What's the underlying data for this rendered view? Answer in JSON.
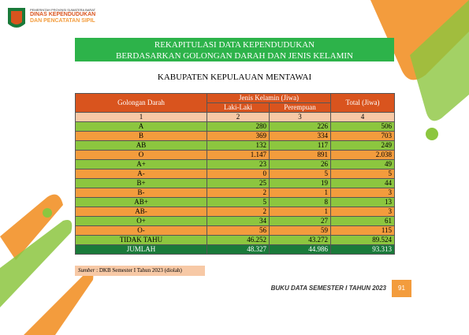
{
  "header": {
    "line1": "PEMERINTAH PROVINSI SUMATERA BARAT",
    "line2": "DINAS KEPENDUDUKAN",
    "line3": "DAN PENCATATAN SIPIL"
  },
  "title": [
    "REKAPITULASI DATA KEPENDUDUKAN",
    "BERDASARKAN GOLONGAN DARAH DAN JENIS KELAMIN"
  ],
  "subtitle": "KABUPATEN KEPULAUAN MENTAWAI",
  "table": {
    "headers": {
      "blood": "Golongan Darah",
      "group": "Jenis Kelamin (Jiwa)",
      "male": "Laki-Laki",
      "female": "Perempuan",
      "total": "Total (Jiwa)"
    },
    "numbers": [
      "1",
      "2",
      "3",
      "4"
    ],
    "rows": [
      [
        "A",
        "280",
        "226",
        "506"
      ],
      [
        "B",
        "369",
        "334",
        "703"
      ],
      [
        "AB",
        "132",
        "117",
        "249"
      ],
      [
        "O",
        "1.147",
        "891",
        "2.038"
      ],
      [
        "A+",
        "23",
        "26",
        "49"
      ],
      [
        "A-",
        "0",
        "5",
        "5"
      ],
      [
        "B+",
        "25",
        "19",
        "44"
      ],
      [
        "B-",
        "2",
        "1",
        "3"
      ],
      [
        "AB+",
        "5",
        "8",
        "13"
      ],
      [
        "AB-",
        "2",
        "1",
        "3"
      ],
      [
        "O+",
        "34",
        "27",
        "61"
      ],
      [
        "O-",
        "56",
        "59",
        "115"
      ],
      [
        "TIDAK TAHU",
        "46.252",
        "43.272",
        "89.524"
      ]
    ],
    "total_row": [
      "JUMLAH",
      "48.327",
      "44.986",
      "93.313"
    ]
  },
  "source": {
    "label": "Sumber",
    "text": ": DKB Semester I Tahun 2023 (diolah)"
  },
  "footer": {
    "text": "BUKU DATA SEMESTER I TAHUN 2023",
    "page": "91"
  }
}
